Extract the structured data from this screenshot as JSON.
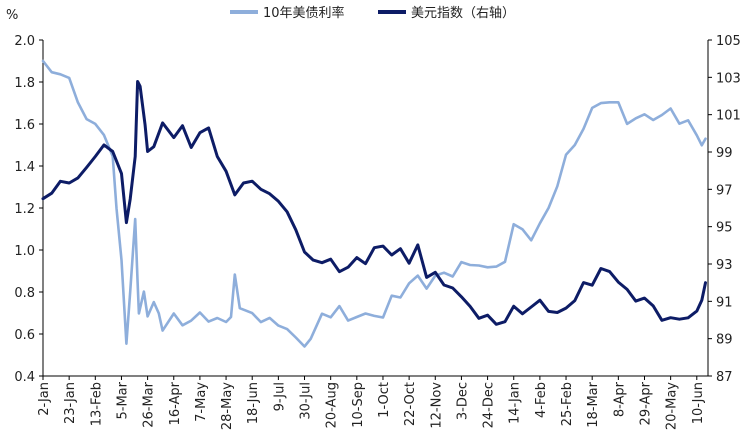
{
  "chart_data": {
    "type": "line",
    "y_left_unit": "%",
    "y_left": {
      "min": 0.4,
      "max": 2.0,
      "ticks": [
        "2.0",
        "1.8",
        "1.6",
        "1.4",
        "1.2",
        "1.0",
        "0.8",
        "0.6",
        "0.4"
      ]
    },
    "y_right": {
      "min": 87,
      "max": 105,
      "ticks": [
        "105",
        "103",
        "101",
        "99",
        "97",
        "95",
        "93",
        "91",
        "89",
        "87"
      ]
    },
    "x_tick_labels": [
      "2-Jan",
      "23-Jan",
      "13-Feb",
      "5-Mar",
      "26-Mar",
      "16-Apr",
      "7-May",
      "28-May",
      "18-Jun",
      "9-Jul",
      "30-Jul",
      "20-Aug",
      "10-Sep",
      "1-Oct",
      "22-Oct",
      "12-Nov",
      "3-Dec",
      "24-Dec",
      "14-Jan",
      "4-Feb",
      "25-Feb",
      "18-Mar",
      "8-Apr",
      "29-Apr",
      "20-May",
      "10-Jun"
    ],
    "x_period_days": 21,
    "grid": false,
    "legend_position": "top-center",
    "series": [
      {
        "name": "10年美债利率",
        "axis": "left",
        "color": "#8eaedb",
        "x": [
          "2-Jan",
          "9-Jan",
          "16-Jan",
          "23-Jan",
          "30-Jan",
          "6-Feb",
          "13-Feb",
          "20-Feb",
          "27-Feb",
          "1-Mar",
          "5-Mar",
          "9-Mar",
          "12-Mar",
          "16-Mar",
          "18-Mar",
          "19-Mar",
          "23-Mar",
          "26-Mar",
          "31-Mar",
          "4-Apr",
          "7-Apr",
          "16-Apr",
          "23-Apr",
          "30-Apr",
          "7-May",
          "14-May",
          "21-May",
          "28-May",
          "1-Jun",
          "4-Jun",
          "8-Jun",
          "18-Jun",
          "25-Jun",
          "2-Jul",
          "9-Jul",
          "16-Jul",
          "23-Jul",
          "30-Jul",
          "4-Aug",
          "13-Aug",
          "20-Aug",
          "27-Aug",
          "3-Sep",
          "10-Sep",
          "17-Sep",
          "24-Sep",
          "1-Oct",
          "8-Oct",
          "15-Oct",
          "22-Oct",
          "29-Oct",
          "5-Nov",
          "12-Nov",
          "19-Nov",
          "26-Nov",
          "3-Dec",
          "10-Dec",
          "17-Dec",
          "24-Dec",
          "31-Dec",
          "7-Jan",
          "14-Jan",
          "21-Jan",
          "28-Jan",
          "4-Feb",
          "11-Feb",
          "18-Feb",
          "25-Feb",
          "4-Mar",
          "11-Mar",
          "18-Mar",
          "25-Mar",
          "1-Apr",
          "8-Apr",
          "15-Apr",
          "22-Apr",
          "29-Apr",
          "6-May",
          "13-May",
          "20-May",
          "27-May",
          "3-Jun",
          "10-Jun",
          "14-Jun",
          "17-Jun"
        ],
        "values": [
          1.9,
          1.85,
          1.84,
          1.82,
          1.7,
          1.62,
          1.6,
          1.55,
          1.45,
          1.2,
          0.95,
          0.55,
          0.8,
          1.15,
          0.85,
          0.7,
          0.8,
          0.68,
          0.75,
          0.7,
          0.62,
          0.7,
          0.64,
          0.66,
          0.7,
          0.66,
          0.68,
          0.66,
          0.68,
          0.88,
          0.72,
          0.7,
          0.66,
          0.68,
          0.64,
          0.62,
          0.58,
          0.54,
          0.58,
          0.7,
          0.68,
          0.73,
          0.66,
          0.68,
          0.7,
          0.69,
          0.68,
          0.78,
          0.77,
          0.84,
          0.88,
          0.82,
          0.88,
          0.89,
          0.87,
          0.94,
          0.93,
          0.93,
          0.92,
          0.92,
          0.94,
          1.12,
          1.1,
          1.05,
          1.13,
          1.2,
          1.3,
          1.45,
          1.5,
          1.58,
          1.68,
          1.7,
          1.7,
          1.7,
          1.6,
          1.63,
          1.65,
          1.62,
          1.64,
          1.67,
          1.6,
          1.62,
          1.55,
          1.5,
          1.53
        ]
      },
      {
        "name": "美元指数（右轴）",
        "axis": "right",
        "color": "#0d1c66",
        "x": [
          "2-Jan",
          "9-Jan",
          "16-Jan",
          "23-Jan",
          "30-Jan",
          "6-Feb",
          "13-Feb",
          "20-Feb",
          "27-Feb",
          "5-Mar",
          "9-Mar",
          "12-Mar",
          "16-Mar",
          "18-Mar",
          "20-Mar",
          "24-Mar",
          "26-Mar",
          "31-Mar",
          "7-Apr",
          "16-Apr",
          "23-Apr",
          "30-Apr",
          "7-May",
          "14-May",
          "21-May",
          "28-May",
          "4-Jun",
          "11-Jun",
          "18-Jun",
          "25-Jun",
          "2-Jul",
          "9-Jul",
          "16-Jul",
          "23-Jul",
          "30-Jul",
          "6-Aug",
          "13-Aug",
          "20-Aug",
          "27-Aug",
          "3-Sep",
          "10-Sep",
          "17-Sep",
          "24-Sep",
          "1-Oct",
          "8-Oct",
          "15-Oct",
          "22-Oct",
          "29-Oct",
          "5-Nov",
          "12-Nov",
          "19-Nov",
          "26-Nov",
          "3-Dec",
          "10-Dec",
          "17-Dec",
          "24-Dec",
          "31-Dec",
          "7-Jan",
          "14-Jan",
          "21-Jan",
          "28-Jan",
          "4-Feb",
          "11-Feb",
          "18-Feb",
          "25-Feb",
          "4-Mar",
          "11-Mar",
          "18-Mar",
          "25-Mar",
          "1-Apr",
          "8-Apr",
          "15-Apr",
          "22-Apr",
          "29-Apr",
          "6-May",
          "13-May",
          "20-May",
          "27-May",
          "3-Jun",
          "10-Jun",
          "14-Jun",
          "17-Jun"
        ],
        "values": [
          96.5,
          96.8,
          97.4,
          97.3,
          97.6,
          98.2,
          98.8,
          99.4,
          99.0,
          97.8,
          95.2,
          96.5,
          98.8,
          102.8,
          102.5,
          100.4,
          99.0,
          99.3,
          100.6,
          99.8,
          100.4,
          99.2,
          100.0,
          100.3,
          98.8,
          98.0,
          96.7,
          97.3,
          97.4,
          97.0,
          96.8,
          96.4,
          95.8,
          94.8,
          93.6,
          93.2,
          93.1,
          93.3,
          92.6,
          92.8,
          93.3,
          93.0,
          93.9,
          94.0,
          93.5,
          93.8,
          93.0,
          94.0,
          92.3,
          92.6,
          91.9,
          91.7,
          91.2,
          90.7,
          90.1,
          90.3,
          89.8,
          89.9,
          90.7,
          90.3,
          90.7,
          91.1,
          90.5,
          90.4,
          90.6,
          91.0,
          92.0,
          91.9,
          92.8,
          92.6,
          92.0,
          91.6,
          91.0,
          91.2,
          90.8,
          90.0,
          90.1,
          90.0,
          90.1,
          90.5,
          91.1,
          92.0
        ]
      }
    ]
  }
}
